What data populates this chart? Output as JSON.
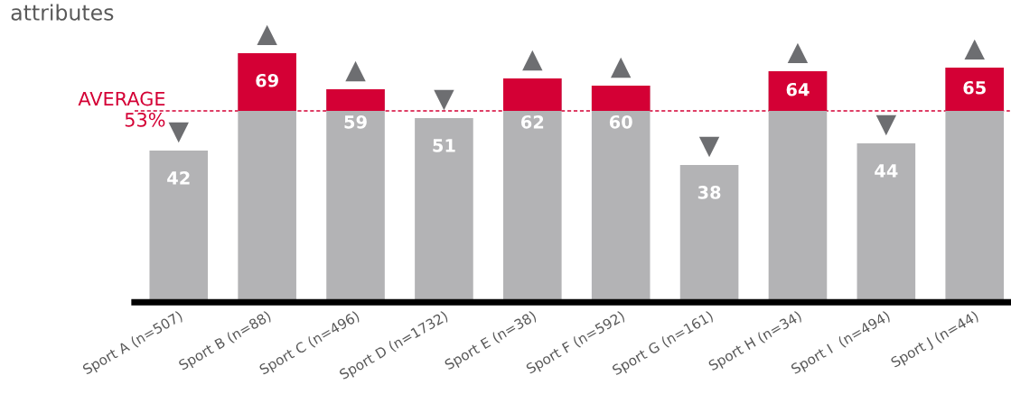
{
  "chart_data": {
    "type": "bar",
    "title": "attributes",
    "categories": [
      "Sport A (n=507)",
      "Sport B (n=88)",
      "Sport C (n=496)",
      "Sport D (n=1732)",
      "Sport E (n=38)",
      "Sport F (n=592)",
      "Sport G (n=161)",
      "Sport H (n=34)",
      "Sport I  (n=494)",
      "Sport J (n=44)"
    ],
    "series": [
      {
        "color": "#b3b3b5",
        "values": [
          42,
          69,
          59,
          51,
          62,
          60,
          38,
          64,
          44,
          65
        ]
      }
    ],
    "data_labels": true,
    "tick_labels": "x",
    "legend": false,
    "ref_lines": [
      {
        "axis": "y",
        "value": 53,
        "label": "AVERAGE\n53%",
        "color": "#d40035",
        "line_style": "dashed"
      }
    ]
  }
}
